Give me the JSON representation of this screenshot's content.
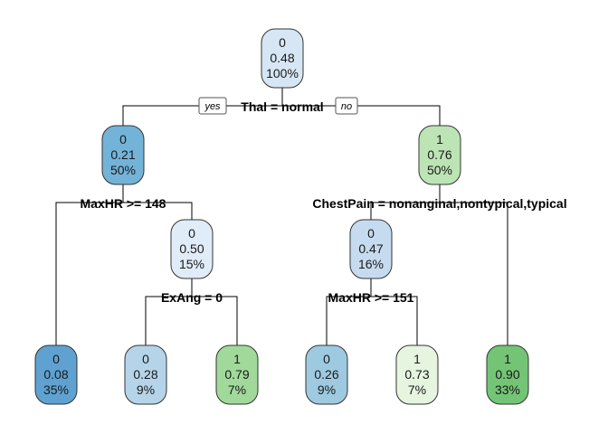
{
  "tree": {
    "nodes": [
      {
        "id": "root",
        "cls": "0",
        "prob": "0.48",
        "pct": "100%",
        "fill": "#d6e6f4"
      },
      {
        "id": "n2",
        "cls": "0",
        "prob": "0.21",
        "pct": "50%",
        "fill": "#74b3d8"
      },
      {
        "id": "n3",
        "cls": "1",
        "prob": "0.76",
        "pct": "50%",
        "fill": "#bce4b5"
      },
      {
        "id": "n5",
        "cls": "0",
        "prob": "0.50",
        "pct": "15%",
        "fill": "#e0ecf8"
      },
      {
        "id": "n6",
        "cls": "0",
        "prob": "0.47",
        "pct": "16%",
        "fill": "#c6dbef"
      },
      {
        "id": "l1",
        "cls": "0",
        "prob": "0.08",
        "pct": "35%",
        "fill": "#5fa2d1"
      },
      {
        "id": "l2",
        "cls": "0",
        "prob": "0.28",
        "pct": "9%",
        "fill": "#b6d4e9"
      },
      {
        "id": "l3",
        "cls": "1",
        "prob": "0.79",
        "pct": "7%",
        "fill": "#a1d99b"
      },
      {
        "id": "l4",
        "cls": "0",
        "prob": "0.26",
        "pct": "9%",
        "fill": "#9ecae1"
      },
      {
        "id": "l5",
        "cls": "1",
        "prob": "0.73",
        "pct": "7%",
        "fill": "#e5f5e0"
      },
      {
        "id": "l6",
        "cls": "1",
        "prob": "0.90",
        "pct": "33%",
        "fill": "#74c476"
      }
    ],
    "splits": [
      {
        "id": "s-root",
        "label": "Thal = normal"
      },
      {
        "id": "s-n2",
        "label": "MaxHR >= 148"
      },
      {
        "id": "s-n3",
        "label": "ChestPain = nonanginal,nontypical,typical"
      },
      {
        "id": "s-n5",
        "label": "ExAng = 0"
      },
      {
        "id": "s-n6",
        "label": "MaxHR >= 151"
      }
    ],
    "branch_tags": {
      "yes": "yes",
      "no": "no"
    },
    "colors": {
      "edge": "#000000",
      "node_border": "#333333",
      "tag_border": "#555555"
    }
  }
}
